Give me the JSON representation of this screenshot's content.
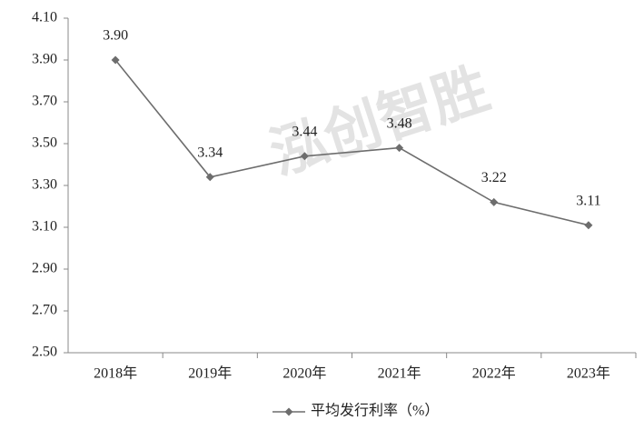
{
  "chart_data": {
    "type": "line",
    "watermark": "泓创智胜",
    "categories": [
      "2018年",
      "2019年",
      "2020年",
      "2021年",
      "2022年",
      "2023年"
    ],
    "series": [
      {
        "name": "平均发行利率（%）",
        "color": "#6d6d6d",
        "values": [
          3.9,
          3.34,
          3.44,
          3.48,
          3.22,
          3.11
        ],
        "value_labels": [
          "3.90",
          "3.34",
          "3.44",
          "3.48",
          "3.22",
          "3.11"
        ]
      }
    ],
    "ylim": [
      2.5,
      4.1
    ],
    "yticks": [
      {
        "value": 2.5,
        "label": "2.50"
      },
      {
        "value": 2.7,
        "label": "2.70"
      },
      {
        "value": 2.9,
        "label": "2.90"
      },
      {
        "value": 3.1,
        "label": "3.10"
      },
      {
        "value": 3.3,
        "label": "3.30"
      },
      {
        "value": 3.5,
        "label": "3.50"
      },
      {
        "value": 3.7,
        "label": "3.70"
      },
      {
        "value": 3.9,
        "label": "3.90"
      },
      {
        "value": 4.1,
        "label": "4.10"
      }
    ],
    "grid": false,
    "legend": "bottom"
  }
}
